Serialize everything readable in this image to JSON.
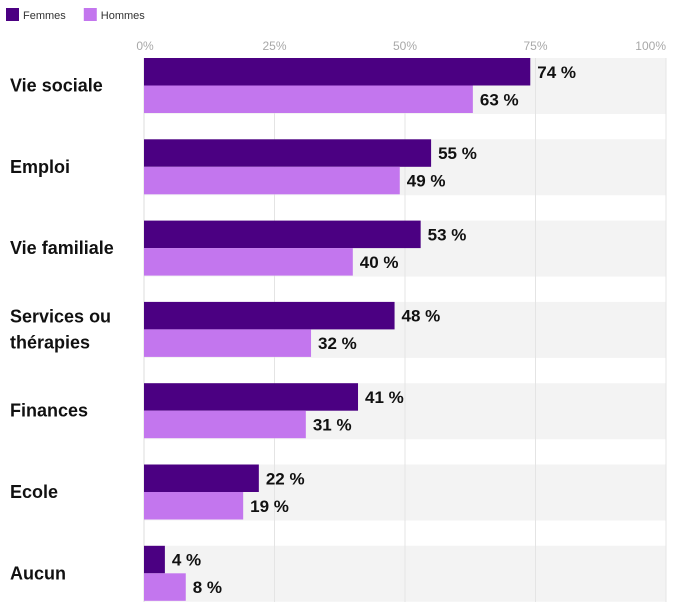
{
  "chart_data": {
    "type": "bar",
    "orientation": "horizontal",
    "title": "",
    "xlabel": "",
    "ylabel": "",
    "xlim": [
      0,
      100
    ],
    "x_ticks": [
      "0%",
      "25%",
      "50%",
      "75%",
      "100%"
    ],
    "legend_position": "top-left",
    "grid": true,
    "categories": [
      [
        "Vie sociale"
      ],
      [
        "Emploi"
      ],
      [
        "Vie familiale"
      ],
      [
        "Services ou",
        "thérapies"
      ],
      [
        "Finances"
      ],
      [
        "Ecole"
      ],
      [
        "Aucun"
      ]
    ],
    "series": [
      {
        "name": "Femmes",
        "color": "#4b0082",
        "values": [
          74,
          55,
          53,
          48,
          41,
          22,
          4
        ],
        "labels": [
          "74 %",
          "55 %",
          "53 %",
          "48 %",
          "41 %",
          "22 %",
          "4 %"
        ]
      },
      {
        "name": "Hommes",
        "color": "#c376ee",
        "values": [
          63,
          49,
          40,
          32,
          31,
          19,
          8
        ],
        "labels": [
          "63 %",
          "49 %",
          "40 %",
          "32 %",
          "31 %",
          "19 %",
          "8 %"
        ]
      }
    ]
  }
}
